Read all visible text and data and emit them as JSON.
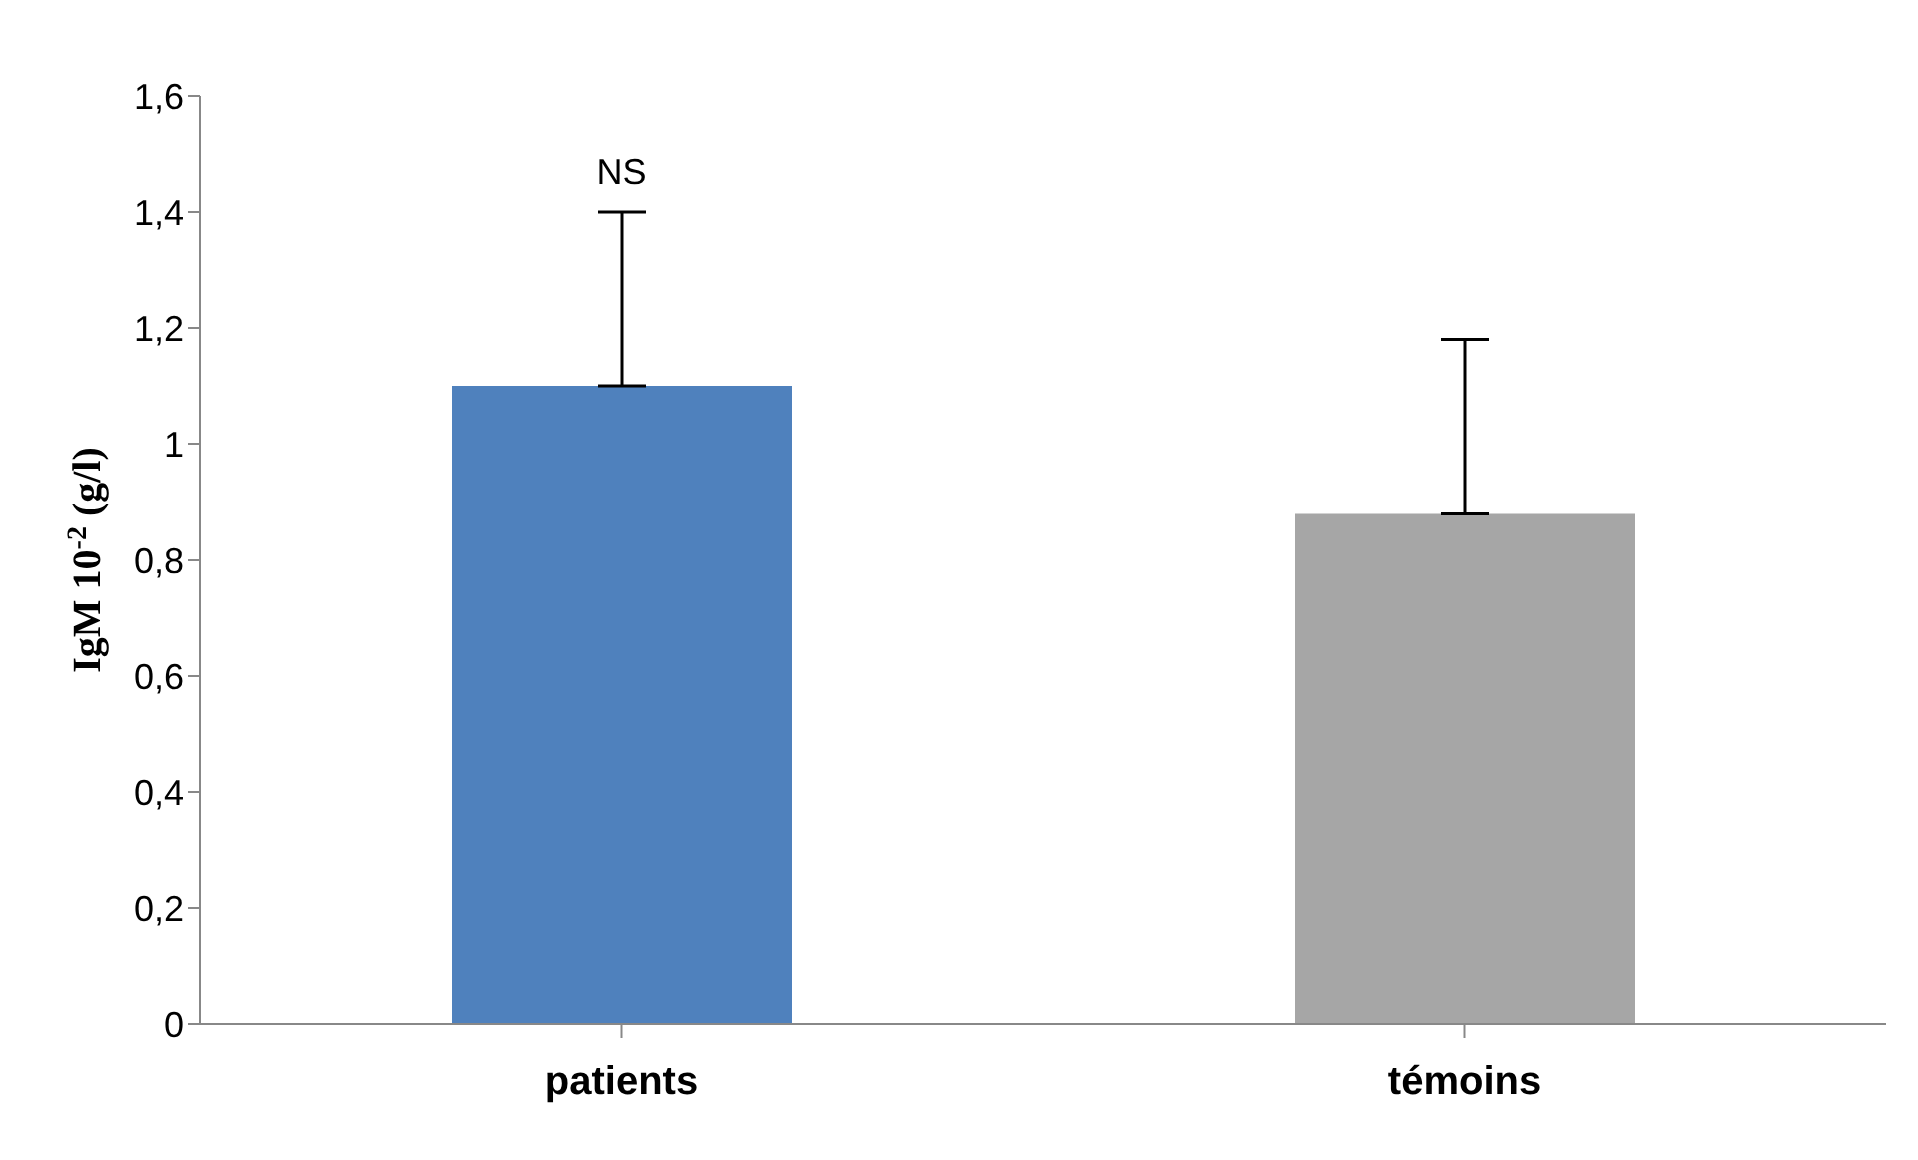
{
  "chart_data": {
    "type": "bar",
    "ylabel": "IgM 10$^{-2}$ (g/l)",
    "categories": [
      "patients",
      "témoins"
    ],
    "values": [
      1.1,
      0.88
    ],
    "colors": [
      "#4f81bd",
      "#a6a6a6"
    ],
    "errors": [
      [
        1.1,
        1.4
      ],
      [
        0.88,
        1.18
      ]
    ],
    "ylim": [
      0,
      1.6
    ],
    "yticks": [
      0,
      {
        "value": 0.2,
        "label": "0,2"
      },
      {
        "value": 0.4,
        "label": "0,4"
      },
      {
        "value": 0.6,
        "label": "0,6"
      },
      {
        "value": 0.8,
        "label": "0,8"
      },
      1,
      {
        "value": 1.2,
        "label": "1,2"
      },
      {
        "value": 1.4,
        "label": "1,4"
      },
      {
        "value": 1.6,
        "label": "1,6"
      }
    ],
    "annotations": [
      {
        "text": "NS",
        "x": "patients",
        "y": 1.4
      }
    ],
    "grid": false
  }
}
